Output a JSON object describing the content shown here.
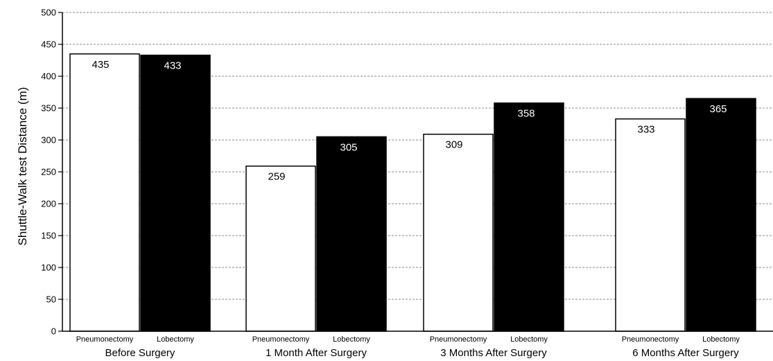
{
  "chart_data": {
    "type": "bar",
    "title": "",
    "xlabel": "",
    "ylabel": "Shuttle-Walk test Distance (m)",
    "ylim": [
      0,
      500
    ],
    "yticks": [
      0,
      50,
      100,
      150,
      200,
      250,
      300,
      350,
      400,
      450,
      500
    ],
    "grid": true,
    "groups": [
      {
        "label": "Before Surgery",
        "bars": [
          {
            "label": "Pneumonectomy",
            "value": 435,
            "data_label": "435"
          },
          {
            "label": "Lobectomy",
            "value": 433,
            "data_label": "433"
          }
        ]
      },
      {
        "label": "1 Month After Surgery",
        "bars": [
          {
            "label": "Pneumonectomy",
            "value": 259,
            "data_label": "259"
          },
          {
            "label": "Lobectomy",
            "value": 305,
            "data_label": "305"
          }
        ]
      },
      {
        "label": "3 Months After Surgery",
        "bars": [
          {
            "label": "Pneumonectomy",
            "value": 309,
            "data_label": "309"
          },
          {
            "label": "Lobectomy",
            "value": 358,
            "data_label": "358"
          }
        ]
      },
      {
        "label": "6 Months After Surgery",
        "bars": [
          {
            "label": "Pneumonectomy",
            "value": 333,
            "data_label": "333"
          },
          {
            "label": "Lobectomy",
            "value": 365,
            "data_label": "365"
          }
        ]
      }
    ],
    "colors": {
      "Pneumonectomy": "#ffffff",
      "Lobectomy": "#000000"
    }
  }
}
